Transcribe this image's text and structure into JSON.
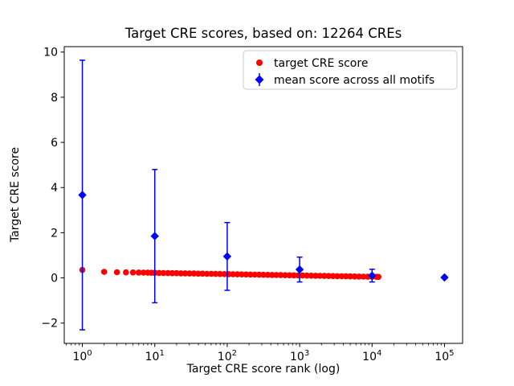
{
  "chart_data": {
    "type": "scatter",
    "title": "Target CRE scores, based on: 12264 CREs",
    "n_cres": 12264,
    "xlabel": "Target CRE score rank (log)",
    "ylabel": "Target CRE score",
    "x_scale": "log",
    "xlim_log10": [
      -0.25,
      5.25
    ],
    "ylim": [
      -2.9,
      10.24
    ],
    "xtick_base": "10",
    "xticks_log10": [
      0,
      1,
      2,
      3,
      4,
      5
    ],
    "xticks_exponents": [
      "0",
      "1",
      "2",
      "3",
      "4",
      "5"
    ],
    "yticks": [
      -2,
      0,
      2,
      4,
      6,
      8,
      10
    ],
    "ytick_labels": [
      "−2",
      "0",
      "2",
      "4",
      "6",
      "8",
      "10"
    ],
    "grid": false,
    "legend_position": "upper right",
    "series": [
      {
        "name": "target CRE score",
        "marker": "circle",
        "color": "#ff0000",
        "points_log10x": [
          [
            0,
            0.35
          ],
          [
            0.301,
            0.27
          ],
          [
            0.477,
            0.252
          ],
          [
            0.602,
            0.245
          ],
          [
            0.699,
            0.24
          ],
          [
            0.778,
            0.236
          ],
          [
            0.845,
            0.232
          ],
          [
            0.903,
            0.229
          ],
          [
            0.954,
            0.226
          ],
          [
            1.0,
            0.224
          ],
          [
            1.06,
            0.221
          ],
          [
            1.12,
            0.217
          ],
          [
            1.18,
            0.214
          ],
          [
            1.24,
            0.21
          ],
          [
            1.3,
            0.207
          ],
          [
            1.36,
            0.203
          ],
          [
            1.42,
            0.2
          ],
          [
            1.48,
            0.196
          ],
          [
            1.54,
            0.193
          ],
          [
            1.6,
            0.189
          ],
          [
            1.66,
            0.186
          ],
          [
            1.72,
            0.182
          ],
          [
            1.78,
            0.179
          ],
          [
            1.84,
            0.175
          ],
          [
            1.9,
            0.172
          ],
          [
            1.96,
            0.168
          ],
          [
            2.02,
            0.165
          ],
          [
            2.08,
            0.161
          ],
          [
            2.14,
            0.158
          ],
          [
            2.2,
            0.154
          ],
          [
            2.26,
            0.151
          ],
          [
            2.32,
            0.147
          ],
          [
            2.38,
            0.144
          ],
          [
            2.44,
            0.14
          ],
          [
            2.5,
            0.137
          ],
          [
            2.56,
            0.134
          ],
          [
            2.62,
            0.13
          ],
          [
            2.68,
            0.127
          ],
          [
            2.74,
            0.123
          ],
          [
            2.8,
            0.12
          ],
          [
            2.86,
            0.116
          ],
          [
            2.92,
            0.113
          ],
          [
            2.98,
            0.109
          ],
          [
            3.04,
            0.106
          ],
          [
            3.1,
            0.102
          ],
          [
            3.16,
            0.099
          ],
          [
            3.22,
            0.095
          ],
          [
            3.28,
            0.092
          ],
          [
            3.34,
            0.088
          ],
          [
            3.4,
            0.085
          ],
          [
            3.46,
            0.081
          ],
          [
            3.52,
            0.078
          ],
          [
            3.58,
            0.074
          ],
          [
            3.64,
            0.071
          ],
          [
            3.7,
            0.067
          ],
          [
            3.76,
            0.064
          ],
          [
            3.82,
            0.06
          ],
          [
            3.88,
            0.057
          ],
          [
            3.94,
            0.053
          ],
          [
            4.0,
            0.05
          ],
          [
            4.06,
            0.047
          ],
          [
            4.088,
            0.045
          ]
        ]
      },
      {
        "name": "mean score across all motifs",
        "marker": "diamond",
        "color": "#0000ff",
        "points_log10x": [
          [
            0,
            3.67
          ],
          [
            1,
            1.85
          ],
          [
            2,
            0.95
          ],
          [
            3,
            0.37
          ],
          [
            4,
            0.1
          ],
          [
            5,
            0.02
          ]
        ],
        "yerr": [
          5.97,
          2.95,
          1.5,
          0.55,
          0.28,
          0
        ]
      }
    ]
  }
}
